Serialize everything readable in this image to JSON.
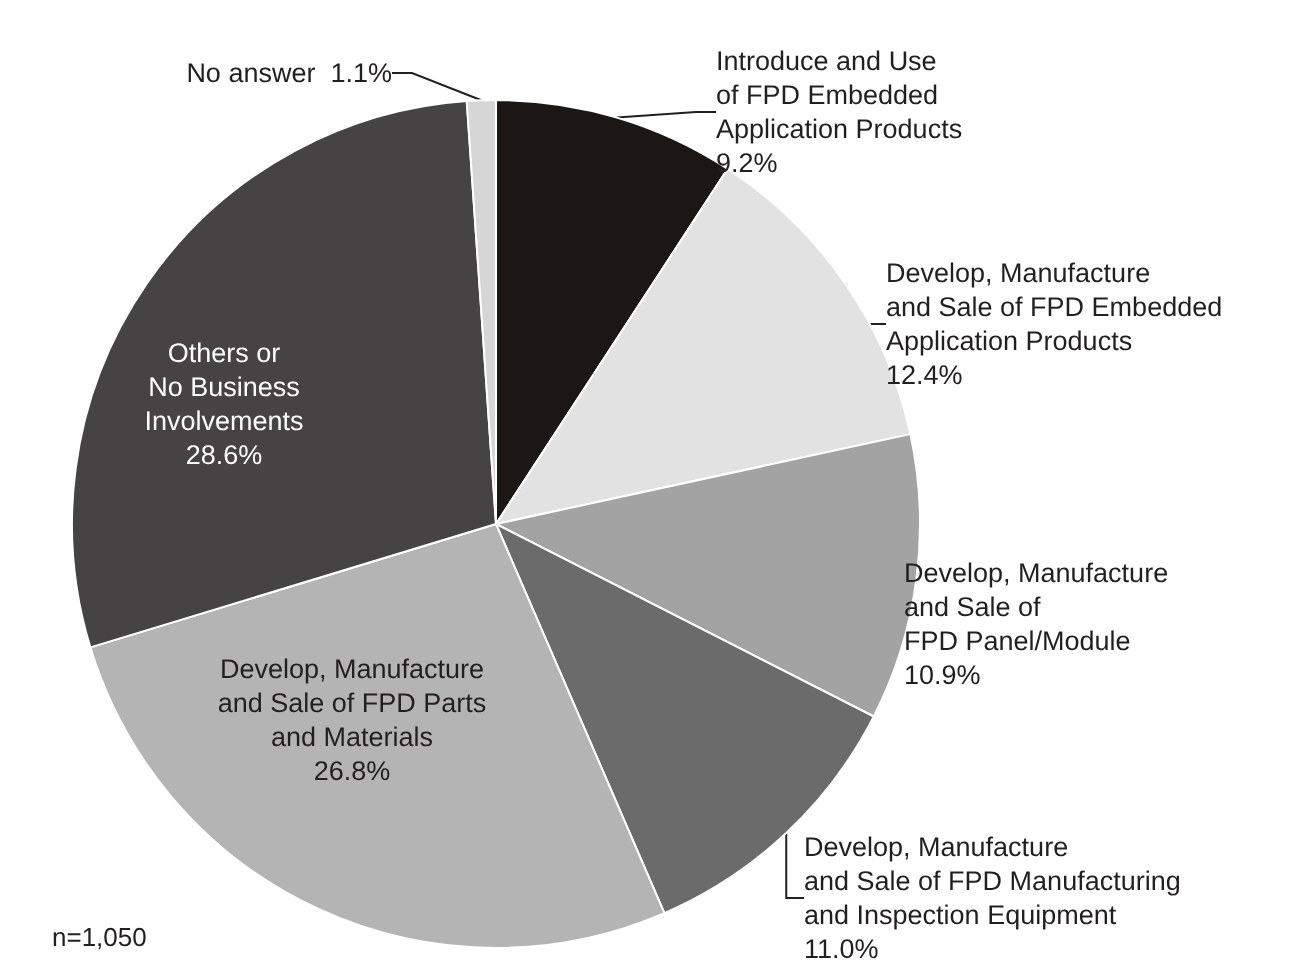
{
  "chart_data": {
    "type": "pie",
    "categories": [
      "Introduce and Use\nof FPD Embedded\nApplication Products",
      "Develop, Manufacture\nand Sale of FPD Embedded\nApplication Products",
      "Develop, Manufacture\nand Sale of\nFPD Panel/Module",
      "Develop, Manufacture\nand Sale of FPD Manufacturing\nand Inspection Equipment",
      "Develop, Manufacture\nand Sale of FPD Parts\nand Materials",
      "Others or\nNo Business\nInvolvements",
      "No answer"
    ],
    "values": [
      9.2,
      12.4,
      10.9,
      11.0,
      26.8,
      28.6,
      1.1
    ],
    "colors": [
      "#1c1614",
      "#e2e2e2",
      "#a3a3a3",
      "#6b6b6b",
      "#b4b4b4",
      "#454343",
      "#d6d6d6"
    ],
    "value_labels": [
      "9.2%",
      "12.4%",
      "10.9%",
      "11.0%",
      "26.8%",
      "28.6%",
      "1.1%"
    ],
    "legend": false,
    "annotations": [
      "n=1,050"
    ]
  }
}
